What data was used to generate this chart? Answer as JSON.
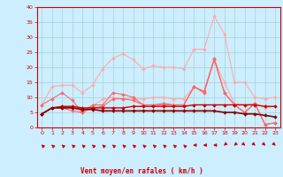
{
  "x": [
    0,
    1,
    2,
    3,
    4,
    5,
    6,
    7,
    8,
    9,
    10,
    11,
    12,
    13,
    14,
    15,
    16,
    17,
    18,
    19,
    20,
    21,
    22,
    23
  ],
  "series": [
    {
      "name": "rafales_light",
      "color": "#ffaaaa",
      "linewidth": 0.8,
      "markersize": 2.0,
      "values": [
        7.5,
        13.5,
        14.0,
        14.0,
        11.5,
        14.0,
        19.5,
        23.0,
        24.5,
        22.5,
        19.5,
        20.5,
        20.0,
        20.0,
        19.5,
        26.0,
        26.0,
        37.0,
        31.0,
        15.0,
        15.0,
        10.0,
        9.5,
        10.0
      ]
    },
    {
      "name": "vent_light",
      "color": "#ffaaaa",
      "linewidth": 0.8,
      "markersize": 2.0,
      "values": [
        4.5,
        6.5,
        7.0,
        6.5,
        5.5,
        7.0,
        9.5,
        10.0,
        9.5,
        9.5,
        9.5,
        10.0,
        10.0,
        9.5,
        9.5,
        13.5,
        12.0,
        22.5,
        15.0,
        8.0,
        7.5,
        8.0,
        6.5,
        7.0
      ]
    },
    {
      "name": "rafales_medium",
      "color": "#ff6666",
      "linewidth": 0.8,
      "markersize": 2.0,
      "values": [
        7.5,
        9.5,
        11.5,
        9.0,
        5.0,
        7.5,
        7.5,
        11.5,
        11.0,
        10.0,
        7.5,
        7.5,
        8.0,
        7.5,
        7.5,
        13.5,
        12.0,
        23.0,
        11.5,
        7.5,
        5.0,
        8.0,
        1.0,
        1.5
      ]
    },
    {
      "name": "vent_medium",
      "color": "#ff6666",
      "linewidth": 0.8,
      "markersize": 2.0,
      "values": [
        4.5,
        6.5,
        6.5,
        5.5,
        5.0,
        6.5,
        7.0,
        9.5,
        9.5,
        9.0,
        7.5,
        7.5,
        7.5,
        7.5,
        7.5,
        13.5,
        11.5,
        22.5,
        11.5,
        7.5,
        5.0,
        8.0,
        1.0,
        1.5
      ]
    },
    {
      "name": "vent_dark",
      "color": "#cc0000",
      "linewidth": 1.0,
      "markersize": 2.0,
      "values": [
        4.5,
        6.5,
        7.0,
        7.0,
        6.5,
        6.5,
        6.5,
        6.5,
        6.5,
        7.0,
        7.0,
        7.0,
        7.0,
        7.0,
        7.0,
        7.5,
        7.5,
        7.5,
        7.5,
        7.5,
        7.5,
        7.5,
        7.0,
        7.0
      ]
    },
    {
      "name": "vent_darkest",
      "color": "#880000",
      "linewidth": 1.2,
      "markersize": 2.0,
      "values": [
        4.5,
        6.5,
        6.5,
        6.5,
        6.0,
        6.0,
        5.5,
        5.5,
        5.5,
        5.5,
        5.5,
        5.5,
        5.5,
        5.5,
        5.5,
        5.5,
        5.5,
        5.5,
        5.0,
        5.0,
        4.5,
        4.5,
        4.0,
        3.5
      ]
    }
  ],
  "arrow_angles": [
    225,
    225,
    225,
    225,
    225,
    225,
    225,
    225,
    225,
    225,
    225,
    225,
    225,
    225,
    225,
    270,
    270,
    270,
    315,
    315,
    45,
    45,
    45,
    45
  ],
  "xlabel": "Vent moyen/en rafales ( km/h )",
  "xlim": [
    -0.5,
    23.5
  ],
  "ylim": [
    0,
    40
  ],
  "yticks": [
    0,
    5,
    10,
    15,
    20,
    25,
    30,
    35,
    40
  ],
  "xticks": [
    0,
    1,
    2,
    3,
    4,
    5,
    6,
    7,
    8,
    9,
    10,
    11,
    12,
    13,
    14,
    15,
    16,
    17,
    18,
    19,
    20,
    21,
    22,
    23
  ],
  "bg_color": "#cceeff",
  "grid_color": "#99cccc",
  "axis_color": "#cc0000",
  "text_color": "#cc0000"
}
